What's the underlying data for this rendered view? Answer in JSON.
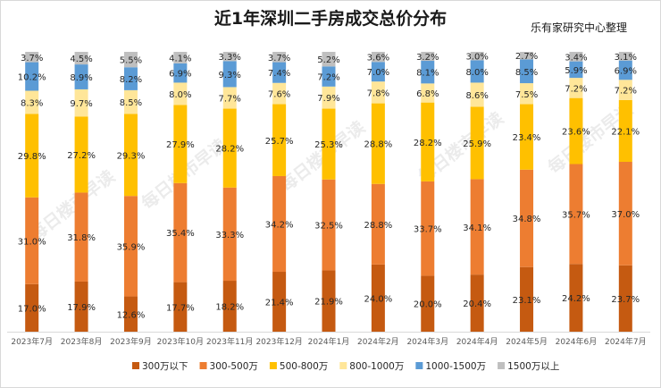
{
  "header": {
    "title": "近1年深圳二手房成交总价分布",
    "source": "乐有家研究中心整理"
  },
  "watermark": "每日楼市早读",
  "chart_data": {
    "type": "bar",
    "stacked": true,
    "percent": true,
    "categories": [
      "2023年7月",
      "2023年8月",
      "2023年9月",
      "2023年10月",
      "2023年11月",
      "2023年12月",
      "2024年1月",
      "2024年2月",
      "2024年3月",
      "2024年4月",
      "2024年5月",
      "2024年6月",
      "2024年7月"
    ],
    "series": [
      {
        "name": "300万以下",
        "color": "#c55a11",
        "values": [
          17.0,
          17.9,
          12.6,
          17.7,
          18.2,
          21.4,
          21.9,
          24.0,
          20.0,
          20.4,
          23.1,
          24.2,
          23.7
        ]
      },
      {
        "name": "300-500万",
        "color": "#ed7d31",
        "values": [
          31.0,
          31.8,
          35.9,
          35.4,
          33.3,
          34.2,
          32.5,
          28.8,
          33.7,
          34.1,
          34.8,
          35.7,
          37.0
        ]
      },
      {
        "name": "500-800万",
        "color": "#ffc000",
        "values": [
          29.8,
          27.2,
          29.3,
          27.9,
          28.2,
          25.7,
          25.3,
          28.8,
          28.2,
          25.9,
          23.4,
          23.6,
          22.1
        ]
      },
      {
        "name": "800-1000万",
        "color": "#ffe699",
        "values": [
          8.3,
          9.7,
          8.5,
          8.0,
          7.7,
          7.6,
          7.9,
          7.8,
          6.8,
          8.6,
          7.5,
          7.2,
          7.2
        ]
      },
      {
        "name": "1000-1500万",
        "color": "#5b9bd5",
        "values": [
          10.2,
          8.9,
          8.2,
          6.9,
          9.3,
          7.4,
          7.2,
          7.0,
          8.1,
          8.0,
          8.5,
          5.9,
          6.9
        ]
      },
      {
        "name": "1500万以上",
        "color": "#bfbfbf",
        "values": [
          3.7,
          4.5,
          5.5,
          4.1,
          3.3,
          3.7,
          5.2,
          3.6,
          3.2,
          3.0,
          2.7,
          3.4,
          3.1
        ]
      }
    ],
    "ylim": [
      0,
      100
    ],
    "value_format": "percent_one_decimal",
    "legend_position": "bottom"
  }
}
